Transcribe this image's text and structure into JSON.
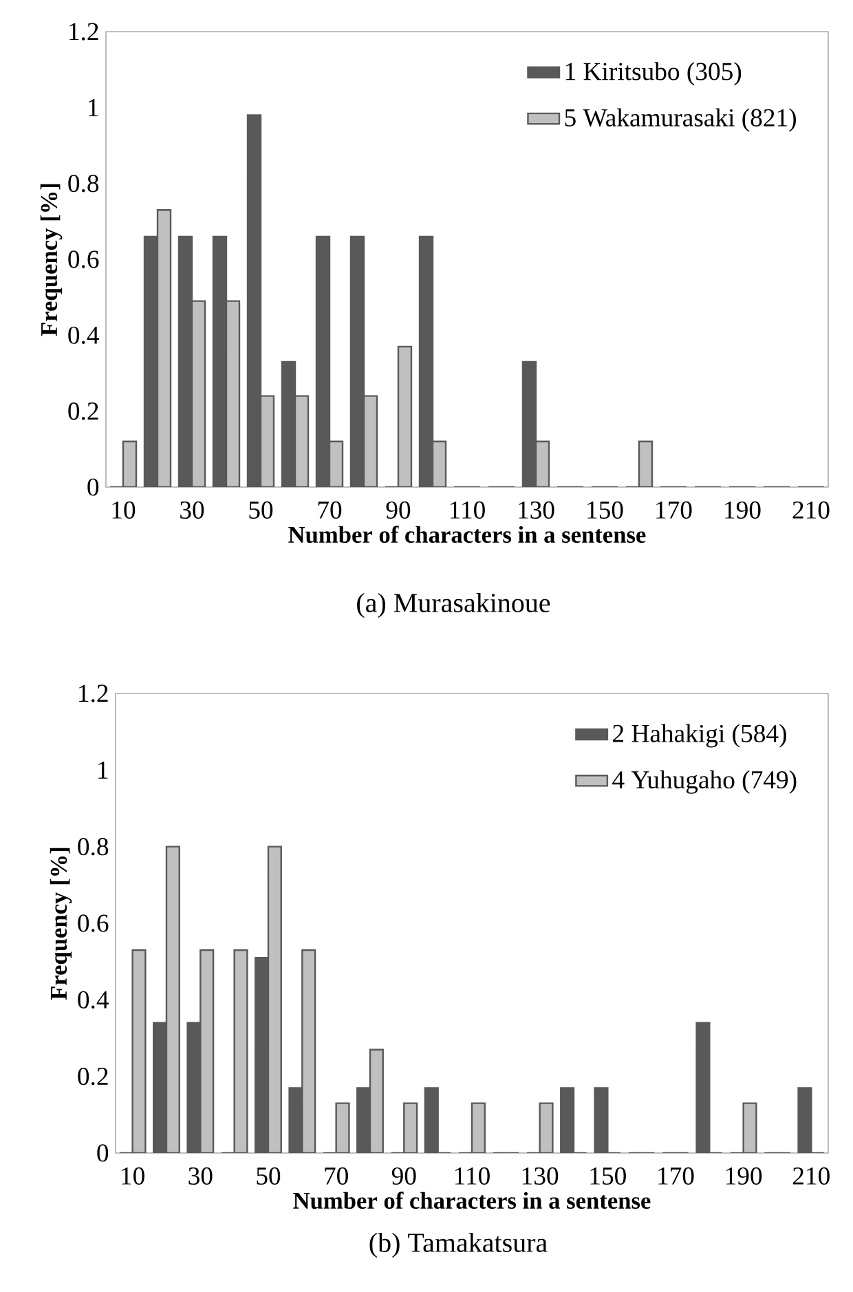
{
  "chart_data": [
    {
      "type": "bar",
      "xlabel": "Number of characters in a sentense",
      "ylabel": "Frequency [%]",
      "annotations": [
        "(a) Murasakinoue"
      ],
      "categories": [
        "10",
        null,
        "30",
        null,
        "50",
        null,
        "70",
        null,
        "90",
        null,
        "110",
        null,
        "130",
        null,
        "150",
        null,
        "170",
        null,
        "190",
        null,
        "210"
      ],
      "series": [
        {
          "name": "1 Kiritsubo (305)",
          "color": "#595959",
          "values": [
            0,
            0.66,
            0.66,
            0.66,
            0.98,
            0.33,
            0.66,
            0.66,
            0,
            0.66,
            0,
            0,
            0.33,
            0,
            0,
            0,
            0,
            0,
            0,
            0,
            0
          ]
        },
        {
          "name": "5 Wakamurasaki (821)",
          "color": "#c0c0c0",
          "values": [
            0.12,
            0.73,
            0.49,
            0.49,
            0.24,
            0.24,
            0.12,
            0.24,
            0.37,
            0.12,
            0,
            0,
            0.12,
            0,
            0,
            0.12,
            0,
            0,
            0,
            0,
            0
          ]
        }
      ],
      "ylim": [
        0,
        1.2
      ],
      "yticks": [
        0,
        0.2,
        0.4,
        0.6,
        0.8,
        1,
        1.2
      ],
      "legend": "top right"
    },
    {
      "type": "bar",
      "xlabel": "Number of characters in a sentense",
      "ylabel": "Frequency [%]",
      "annotations": [
        "(b) Tamakatsura"
      ],
      "categories": [
        "10",
        null,
        "30",
        null,
        "50",
        null,
        "70",
        null,
        "90",
        null,
        "110",
        null,
        "130",
        null,
        "150",
        null,
        "170",
        null,
        "190",
        null,
        "210"
      ],
      "series": [
        {
          "name": "2 Hahakigi (584)",
          "color": "#595959",
          "values": [
            0,
            0.34,
            0.34,
            0,
            0.51,
            0.17,
            0,
            0.17,
            0,
            0.17,
            0,
            0,
            0,
            0.17,
            0.17,
            0,
            0,
            0.34,
            0,
            0,
            0.17
          ]
        },
        {
          "name": "4 Yuhugaho (749)",
          "color": "#c0c0c0",
          "values": [
            0.53,
            0.8,
            0.53,
            0.53,
            0.8,
            0.53,
            0.13,
            0.27,
            0.13,
            0,
            0.13,
            0,
            0.13,
            0,
            0,
            0,
            0,
            0,
            0.13,
            0,
            0
          ]
        }
      ],
      "ylim": [
        0,
        1.2
      ],
      "yticks": [
        0,
        0.2,
        0.4,
        0.6,
        0.8,
        1,
        1.2
      ],
      "legend": "top right"
    }
  ]
}
